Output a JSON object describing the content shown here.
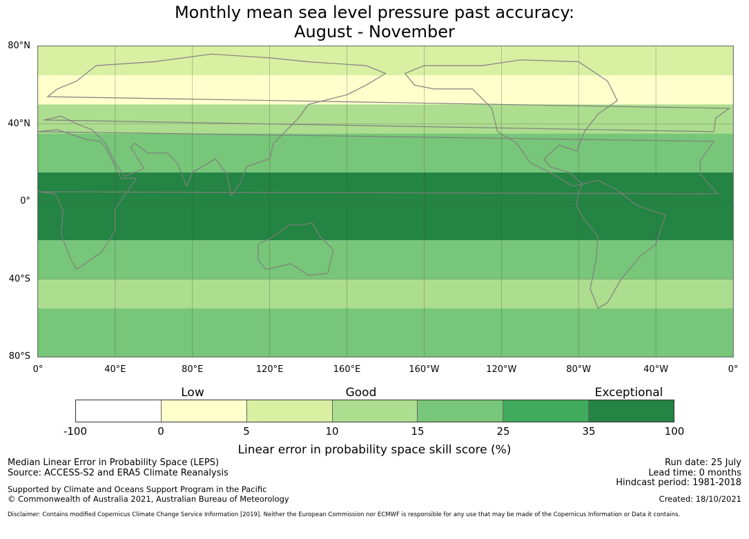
{
  "title": {
    "line1": "Monthly mean sea level pressure past accuracy:",
    "line2": "August - November"
  },
  "map": {
    "lat_labels": [
      "80°N",
      "40°N",
      "0°",
      "40°S",
      "80°S"
    ],
    "lat_values": [
      80,
      40,
      0,
      -40,
      -80
    ],
    "lon_labels": [
      "0°",
      "40°E",
      "80°E",
      "120°E",
      "160°E",
      "160°W",
      "120°W",
      "80°W",
      "40°W",
      "0°"
    ],
    "lon_values": [
      0,
      40,
      80,
      120,
      160,
      200,
      240,
      280,
      320,
      360
    ],
    "bands": [
      {
        "lat_top": 80,
        "lat_bottom": 65,
        "class": 2
      },
      {
        "lat_top": 65,
        "lat_bottom": 50,
        "class": 1
      },
      {
        "lat_top": 50,
        "lat_bottom": 35,
        "class": 3
      },
      {
        "lat_top": 35,
        "lat_bottom": 15,
        "class": 4
      },
      {
        "lat_top": 15,
        "lat_bottom": -20,
        "class": 6
      },
      {
        "lat_top": -20,
        "lat_bottom": -40,
        "class": 4
      },
      {
        "lat_top": -40,
        "lat_bottom": -55,
        "class": 3
      },
      {
        "lat_top": -55,
        "lat_bottom": -80,
        "class": 4
      }
    ]
  },
  "colorbar": {
    "categories": [
      "Low",
      "Good",
      "Exceptional"
    ],
    "ticks": [
      "-100",
      "0",
      "5",
      "10",
      "15",
      "25",
      "35",
      "100"
    ],
    "colors": [
      "#ffffff",
      "#ffffcc",
      "#d9f0a3",
      "#addd8e",
      "#78c679",
      "#41ab5d",
      "#238443"
    ],
    "label": "Linear error in probability space skill score (%)"
  },
  "info": {
    "method": "Median Linear Error in Probability Space (LEPS)",
    "source": "Source: ACCESS-S2 and ERA5 Climate Reanalysis",
    "support": "Supported by Climate and Oceans Support Program in the Pacific",
    "copyright": "© Commonwealth of Australia 2021, Australian Bureau of Meteorology",
    "run_date": "Run date: 25 July",
    "lead_time": "Lead time: 0 months",
    "hindcast": "Hindcast period: 1981-2018",
    "created": "Created: 18/10/2021",
    "disclaimer": "Disclaimer: Contains modified Copernicus Climate Change Service Information [2019]. Neither the European Commission nor ECMWF is responsible for any use that may be made of the Copernicus Information or Data it contains."
  }
}
